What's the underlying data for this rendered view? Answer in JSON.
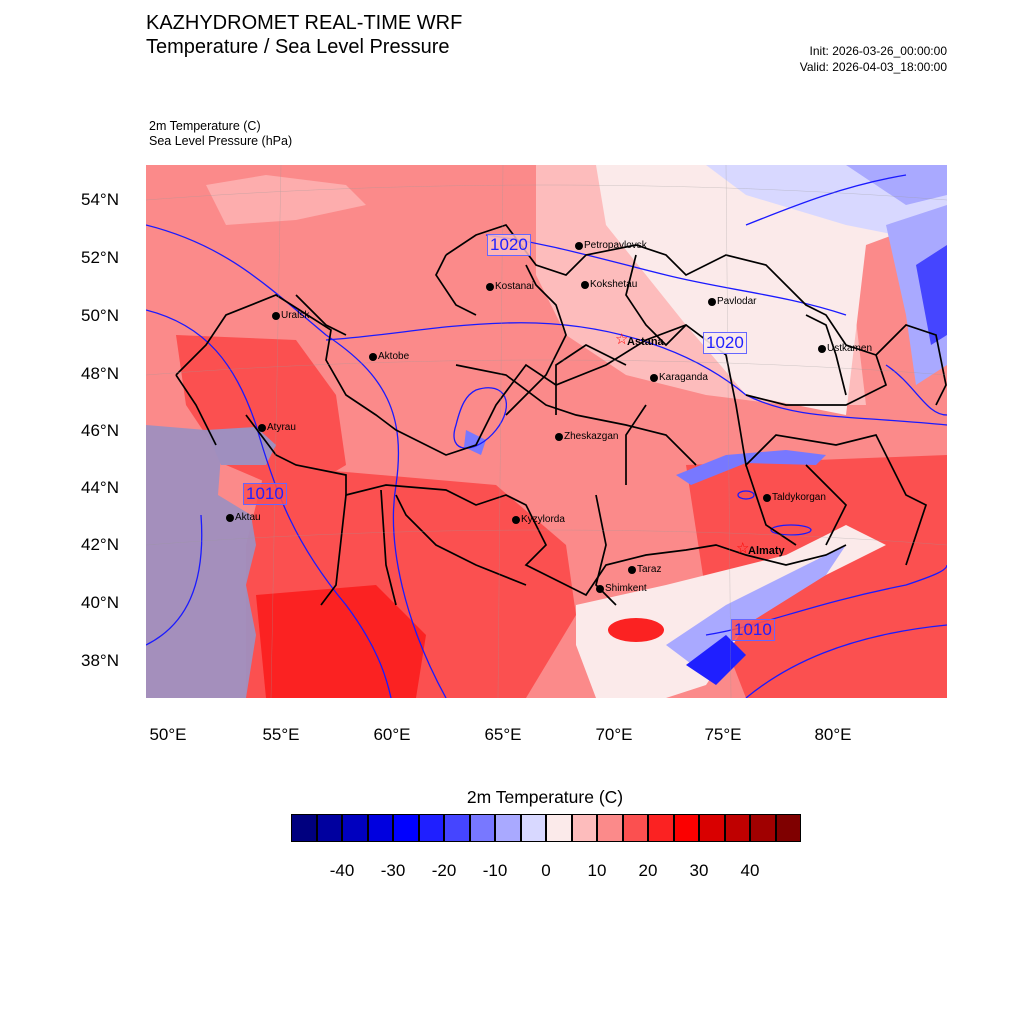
{
  "header": {
    "title": "KAZHYDROMET REAL-TIME WRF",
    "subtitle": "Temperature / Sea Level Pressure",
    "init": "Init: 2026-03-26_00:00:00",
    "valid": "Valid: 2026-04-03_18:00:00"
  },
  "variables": {
    "temperature": "2m Temperature   (C)",
    "pressure": "Sea Level Pressure   (hPa)"
  },
  "axes": {
    "lat_labels": [
      "54°N",
      "52°N",
      "50°N",
      "48°N",
      "46°N",
      "44°N",
      "42°N",
      "40°N",
      "38°N"
    ],
    "lon_labels": [
      "50°E",
      "55°E",
      "60°E",
      "65°E",
      "70°E",
      "75°E",
      "80°E"
    ]
  },
  "isobar_labels": [
    "1020",
    "1020",
    "1010",
    "1010"
  ],
  "cities": [
    {
      "name": "Petropavlovsk",
      "capital": false
    },
    {
      "name": "Kokshetau",
      "capital": false
    },
    {
      "name": "Kostanai",
      "capital": false
    },
    {
      "name": "Pavlodar",
      "capital": false
    },
    {
      "name": "Uralsk",
      "capital": false
    },
    {
      "name": "Astana",
      "capital": true
    },
    {
      "name": "Aktobe",
      "capital": false
    },
    {
      "name": "Ustkamen",
      "capital": false
    },
    {
      "name": "Karaganda",
      "capital": false
    },
    {
      "name": "Atyrau",
      "capital": false
    },
    {
      "name": "Zheskazgan",
      "capital": false
    },
    {
      "name": "Taldykorgan",
      "capital": false
    },
    {
      "name": "Aktau",
      "capital": false
    },
    {
      "name": "Kyzylorda",
      "capital": false
    },
    {
      "name": "Almaty",
      "capital": true
    },
    {
      "name": "Taraz",
      "capital": false
    },
    {
      "name": "Shimkent",
      "capital": false
    }
  ],
  "colorbar": {
    "title": "2m Temperature  (C)",
    "colors": [
      "#00007f",
      "#00009f",
      "#0000bf",
      "#0000df",
      "#0000ff",
      "#1f1fff",
      "#4545ff",
      "#7878ff",
      "#a9a9ff",
      "#d8d8ff",
      "#fbeaea",
      "#fdbcbc",
      "#fb8a8a",
      "#fb5050",
      "#fb2222",
      "#fb0000",
      "#d90000",
      "#bf0000",
      "#a00000",
      "#7f0000"
    ],
    "tick_labels": [
      "-40",
      "-30",
      "-20",
      "-10",
      "0",
      "10",
      "20",
      "30",
      "40"
    ]
  }
}
